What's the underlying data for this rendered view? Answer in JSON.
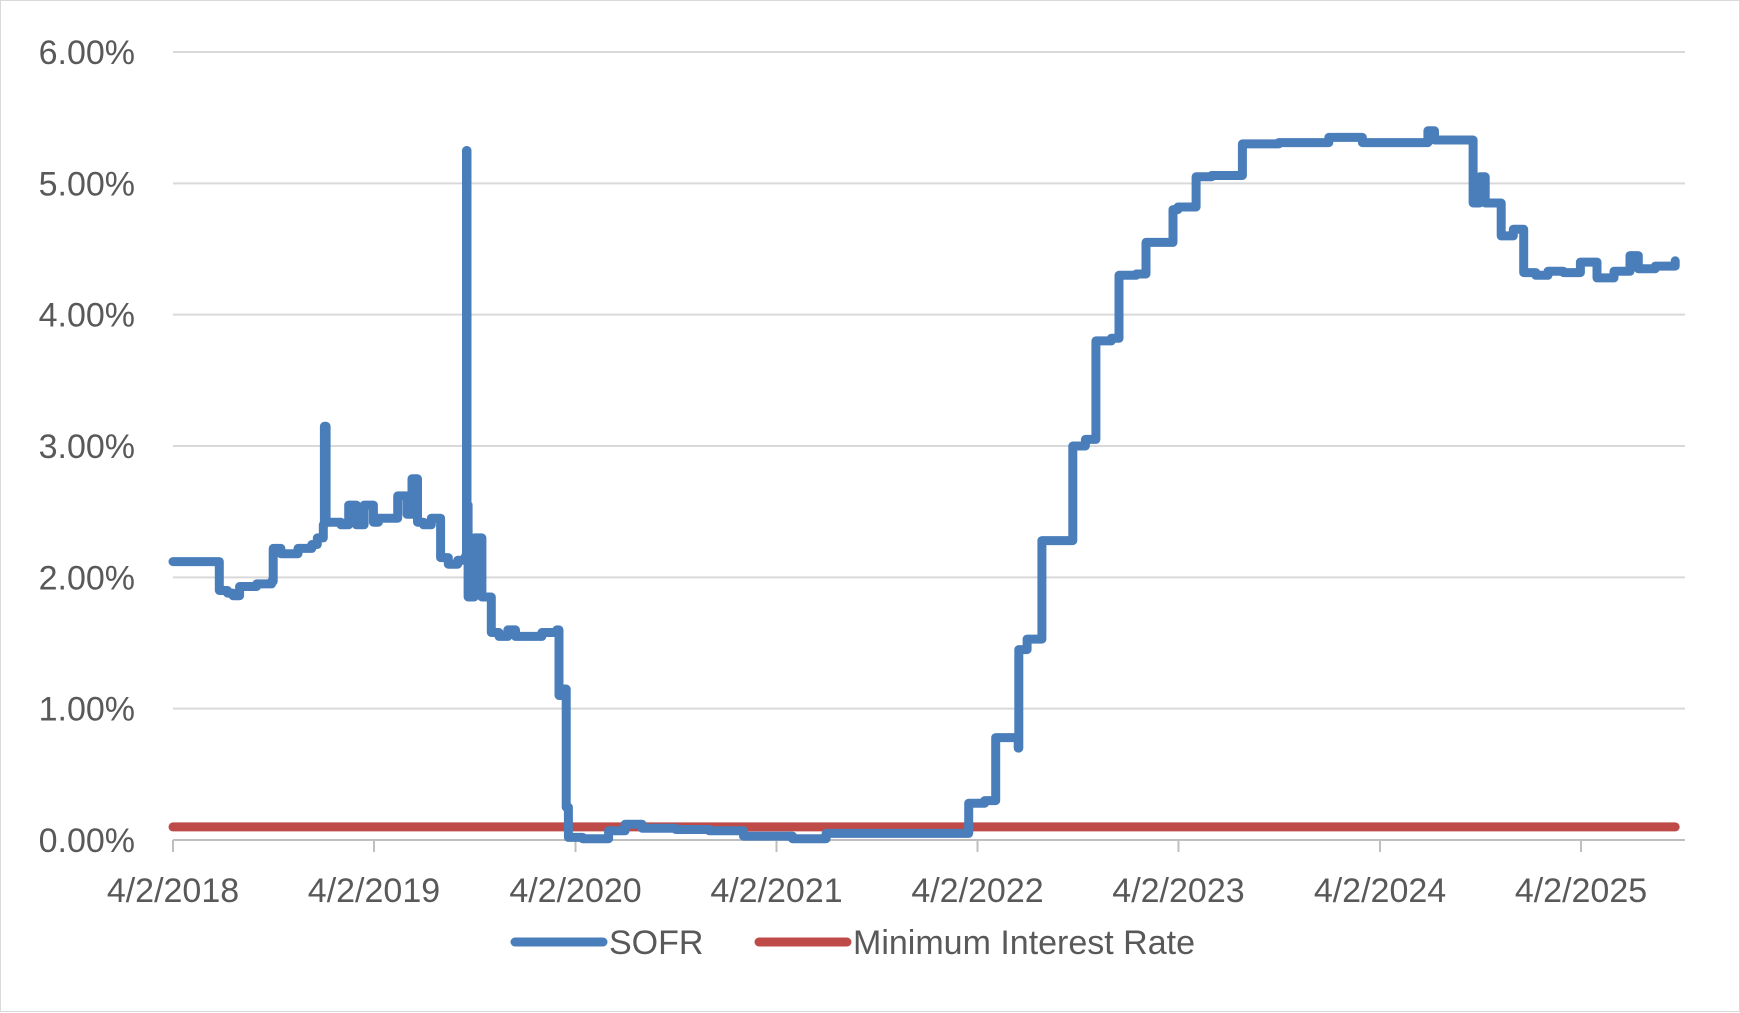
{
  "chart_data": {
    "type": "line",
    "title": "",
    "xlabel": "",
    "ylabel": "",
    "ylim": [
      0,
      6
    ],
    "y_ticks": [
      "0.00%",
      "1.00%",
      "2.00%",
      "3.00%",
      "4.00%",
      "5.00%",
      "6.00%"
    ],
    "x_ticks": [
      "4/2/2018",
      "4/2/2019",
      "4/2/2020",
      "4/2/2021",
      "4/2/2022",
      "4/2/2023",
      "4/2/2024",
      "4/2/2025"
    ],
    "grid": "horizontal",
    "legend_position": "bottom",
    "colors": {
      "SOFR": "#4a7ebb",
      "Minimum Interest Rate": "#be4b48",
      "grid": "#d9d9d9",
      "axis": "#bfbfbf",
      "text": "#595959"
    },
    "series": [
      {
        "name": "SOFR",
        "points": [
          [
            "2018-04-02",
            2.12
          ],
          [
            "2018-06-15",
            2.12
          ],
          [
            "2018-06-25",
            1.9
          ],
          [
            "2018-07-10",
            1.88
          ],
          [
            "2018-07-20",
            1.86
          ],
          [
            "2018-08-01",
            1.93
          ],
          [
            "2018-09-01",
            1.95
          ],
          [
            "2018-09-28",
            1.97
          ],
          [
            "2018-10-01",
            2.22
          ],
          [
            "2018-10-15",
            2.18
          ],
          [
            "2018-11-15",
            2.22
          ],
          [
            "2018-12-10",
            2.25
          ],
          [
            "2018-12-20",
            2.3
          ],
          [
            "2018-12-31",
            2.4
          ],
          [
            "2019-01-02",
            3.15
          ],
          [
            "2019-01-05",
            2.42
          ],
          [
            "2019-02-01",
            2.4
          ],
          [
            "2019-02-15",
            2.55
          ],
          [
            "2019-03-01",
            2.4
          ],
          [
            "2019-03-15",
            2.55
          ],
          [
            "2019-04-01",
            2.42
          ],
          [
            "2019-04-10",
            2.45
          ],
          [
            "2019-05-01",
            2.45
          ],
          [
            "2019-05-15",
            2.62
          ],
          [
            "2019-06-01",
            2.48
          ],
          [
            "2019-06-10",
            2.75
          ],
          [
            "2019-06-20",
            2.42
          ],
          [
            "2019-07-01",
            2.4
          ],
          [
            "2019-07-15",
            2.45
          ],
          [
            "2019-08-01",
            2.15
          ],
          [
            "2019-08-15",
            2.1
          ],
          [
            "2019-09-01",
            2.13
          ],
          [
            "2019-09-15",
            2.16
          ],
          [
            "2019-09-17",
            5.25
          ],
          [
            "2019-09-18",
            2.55
          ],
          [
            "2019-09-20",
            1.85
          ],
          [
            "2019-10-01",
            2.3
          ],
          [
            "2019-10-15",
            1.85
          ],
          [
            "2019-11-01",
            1.58
          ],
          [
            "2019-11-15",
            1.55
          ],
          [
            "2019-12-01",
            1.6
          ],
          [
            "2019-12-15",
            1.55
          ],
          [
            "2020-01-01",
            1.55
          ],
          [
            "2020-02-01",
            1.58
          ],
          [
            "2020-02-28",
            1.6
          ],
          [
            "2020-03-03",
            1.1
          ],
          [
            "2020-03-10",
            1.15
          ],
          [
            "2020-03-16",
            0.25
          ],
          [
            "2020-03-20",
            0.02
          ],
          [
            "2020-04-15",
            0.01
          ],
          [
            "2020-06-01",
            0.07
          ],
          [
            "2020-07-01",
            0.12
          ],
          [
            "2020-08-01",
            0.09
          ],
          [
            "2020-10-01",
            0.08
          ],
          [
            "2020-12-01",
            0.07
          ],
          [
            "2021-02-01",
            0.03
          ],
          [
            "2021-05-01",
            0.01
          ],
          [
            "2021-07-01",
            0.05
          ],
          [
            "2021-10-01",
            0.05
          ],
          [
            "2022-01-01",
            0.05
          ],
          [
            "2022-03-17",
            0.28
          ],
          [
            "2022-04-15",
            0.3
          ],
          [
            "2022-05-05",
            0.78
          ],
          [
            "2022-06-01",
            0.78
          ],
          [
            "2022-06-15",
            0.7
          ],
          [
            "2022-06-16",
            1.45
          ],
          [
            "2022-07-01",
            1.53
          ],
          [
            "2022-07-28",
            2.28
          ],
          [
            "2022-09-01",
            2.28
          ],
          [
            "2022-09-22",
            3.0
          ],
          [
            "2022-10-15",
            3.05
          ],
          [
            "2022-11-03",
            3.8
          ],
          [
            "2022-12-01",
            3.82
          ],
          [
            "2022-12-15",
            4.3
          ],
          [
            "2023-01-15",
            4.31
          ],
          [
            "2023-02-02",
            4.55
          ],
          [
            "2023-03-15",
            4.55
          ],
          [
            "2023-03-23",
            4.8
          ],
          [
            "2023-04-01",
            4.82
          ],
          [
            "2023-05-04",
            5.05
          ],
          [
            "2023-06-01",
            5.06
          ],
          [
            "2023-07-27",
            5.3
          ],
          [
            "2023-10-01",
            5.31
          ],
          [
            "2023-12-31",
            5.35
          ],
          [
            "2024-03-01",
            5.31
          ],
          [
            "2024-06-28",
            5.4
          ],
          [
            "2024-07-10",
            5.33
          ],
          [
            "2024-09-18",
            4.85
          ],
          [
            "2024-09-30",
            5.05
          ],
          [
            "2024-10-10",
            4.85
          ],
          [
            "2024-11-08",
            4.6
          ],
          [
            "2024-11-30",
            4.65
          ],
          [
            "2024-12-19",
            4.32
          ],
          [
            "2025-01-10",
            4.3
          ],
          [
            "2025-02-01",
            4.33
          ],
          [
            "2025-03-01",
            4.32
          ],
          [
            "2025-04-01",
            4.4
          ],
          [
            "2025-05-01",
            4.28
          ],
          [
            "2025-06-01",
            4.33
          ],
          [
            "2025-06-30",
            4.45
          ],
          [
            "2025-07-15",
            4.35
          ],
          [
            "2025-08-15",
            4.37
          ],
          [
            "2025-09-20",
            4.41
          ]
        ]
      },
      {
        "name": "Minimum Interest Rate",
        "points": [
          [
            "2018-04-02",
            0.1
          ],
          [
            "2025-09-20",
            0.1
          ]
        ]
      }
    ]
  }
}
